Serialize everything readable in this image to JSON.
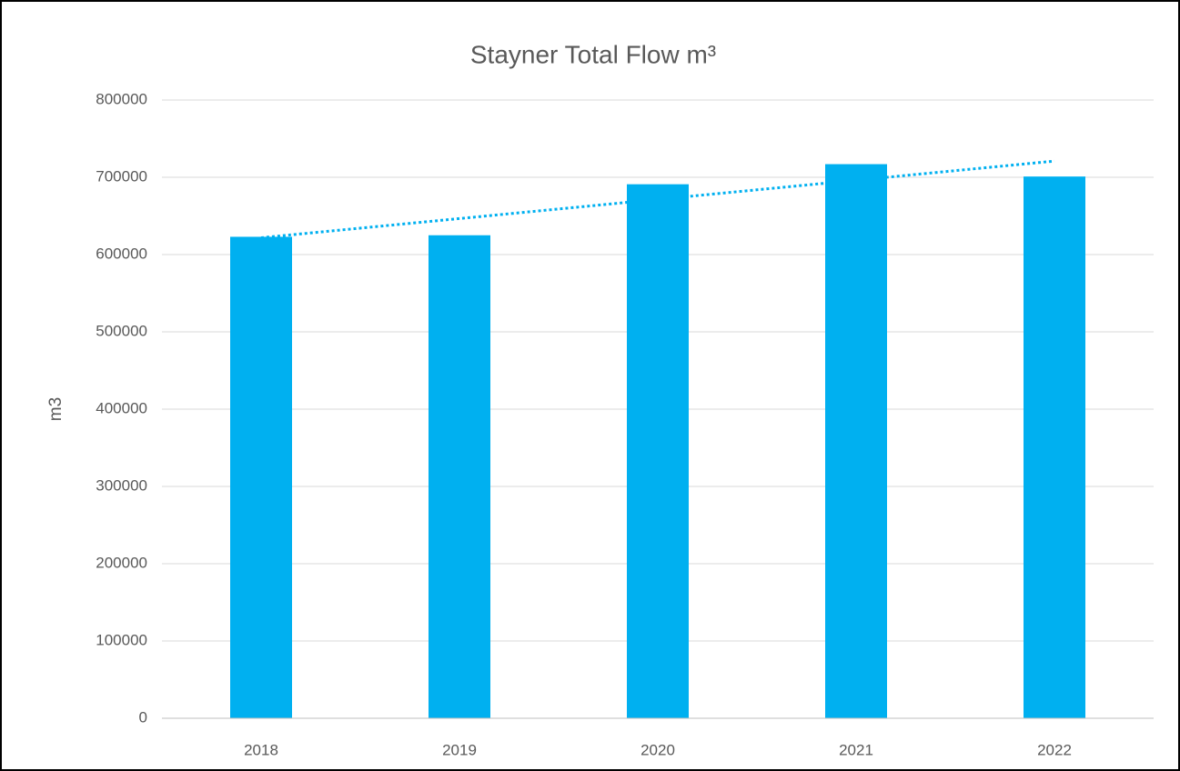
{
  "chart_data": {
    "type": "bar",
    "title": "Stayner Total Flow m³",
    "y_label": "m3",
    "categories": [
      "2018",
      "2019",
      "2020",
      "2021",
      "2022"
    ],
    "values": [
      623000,
      625000,
      691000,
      717000,
      701000
    ],
    "color": "#00b0f0",
    "trendline": "linear",
    "trendline_color": "#00b0f0",
    "ylim": [
      0,
      800000
    ],
    "yticks": [
      0,
      100000,
      200000,
      300000,
      400000,
      500000,
      600000,
      700000,
      800000
    ],
    "grid": true
  }
}
